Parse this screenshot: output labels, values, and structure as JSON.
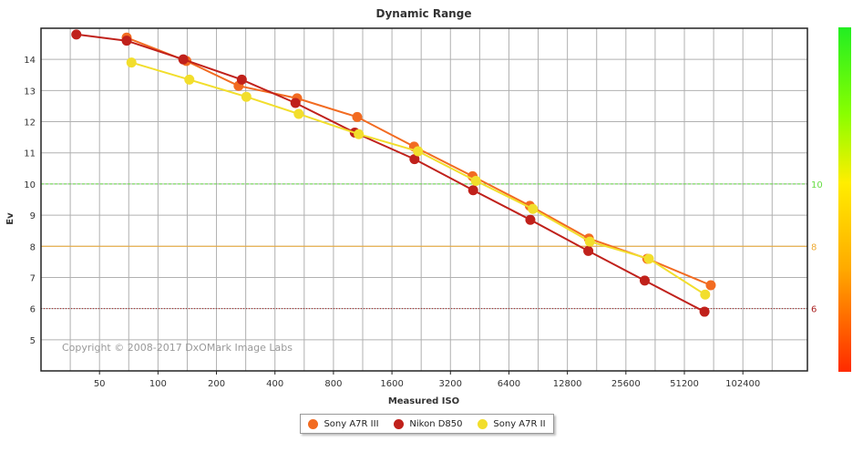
{
  "chart_data": {
    "type": "line",
    "title": "Dynamic Range",
    "xlabel": "Measured ISO",
    "ylabel": "Ev",
    "x_scale": "log2",
    "x_ticks": [
      50,
      100,
      200,
      400,
      800,
      1600,
      3200,
      6400,
      12800,
      25600,
      51200,
      102400
    ],
    "x_tick_labels": [
      "50",
      "100",
      "200",
      "400",
      "800",
      "1600",
      "3200",
      "6400",
      "12800",
      "25600",
      "51200",
      "102400"
    ],
    "xlim": [
      25,
      220000
    ],
    "y_ticks": [
      5,
      6,
      7,
      8,
      9,
      10,
      11,
      12,
      13,
      14
    ],
    "y_tick_labels": [
      "5",
      "6",
      "7",
      "8",
      "9",
      "10",
      "11",
      "12",
      "13",
      "14"
    ],
    "ylim": [
      4,
      15
    ],
    "grid": true,
    "copyright": "Copyright © 2008-2017 DxOMark Image Labs",
    "reference_lines": [
      {
        "value": 10,
        "label": "10",
        "color": "#66dd44",
        "style": "dashed"
      },
      {
        "value": 8,
        "label": "8",
        "color": "#eeaa33",
        "style": "solid"
      },
      {
        "value": 6,
        "label": "6",
        "color": "#aa2222",
        "style": "dotted"
      }
    ],
    "color_scale": {
      "colors": [
        "#ff2a00",
        "#ffaa00",
        "#ffee00",
        "#88ff00",
        "#22ee22"
      ]
    },
    "series": [
      {
        "name": "Sony A7R III",
        "color": "#f26b21",
        "points": [
          [
            69,
            14.7
          ],
          [
            140,
            13.95
          ],
          [
            260,
            13.15
          ],
          [
            520,
            12.75
          ],
          [
            1060,
            12.15
          ],
          [
            2080,
            11.2
          ],
          [
            4160,
            10.25
          ],
          [
            8200,
            9.3
          ],
          [
            16500,
            8.25
          ],
          [
            33000,
            7.6
          ],
          [
            70000,
            6.75
          ]
        ]
      },
      {
        "name": "Nikon D850",
        "color": "#c0211b",
        "points": [
          [
            38,
            14.8
          ],
          [
            69,
            14.6
          ],
          [
            135,
            14.0
          ],
          [
            270,
            13.35
          ],
          [
            510,
            12.6
          ],
          [
            1030,
            11.65
          ],
          [
            2090,
            10.8
          ],
          [
            4190,
            9.8
          ],
          [
            8250,
            8.85
          ],
          [
            16400,
            7.85
          ],
          [
            32000,
            6.9
          ],
          [
            65000,
            5.9
          ]
        ]
      },
      {
        "name": "Sony A7R II",
        "color": "#f2de2c",
        "points": [
          [
            73,
            13.9
          ],
          [
            145,
            13.35
          ],
          [
            285,
            12.8
          ],
          [
            530,
            12.25
          ],
          [
            1080,
            11.6
          ],
          [
            2180,
            11.05
          ],
          [
            4330,
            10.1
          ],
          [
            8500,
            9.2
          ],
          [
            16700,
            8.15
          ],
          [
            33600,
            7.6
          ],
          [
            65500,
            6.45
          ]
        ]
      }
    ]
  }
}
